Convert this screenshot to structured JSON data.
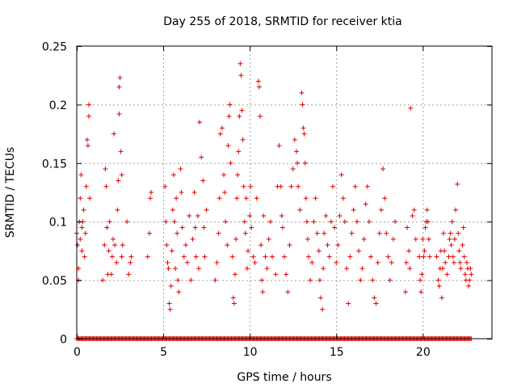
{
  "chart_data": {
    "type": "scatter",
    "title": "Day 255 of 2018, SRMTID for receiver ktia",
    "xlabel": "GPS time / hours",
    "ylabel": "SRMTID / TECUs",
    "xlim": [
      0,
      24
    ],
    "ylim": [
      0,
      0.25
    ],
    "x_ticks": [
      0,
      5,
      10,
      15,
      20
    ],
    "x_tick_labels": [
      "0",
      "5",
      "10",
      "15",
      "20"
    ],
    "y_ticks": [
      0,
      0.05,
      0.1,
      0.15,
      0.2,
      0.25
    ],
    "y_tick_labels": [
      "0",
      "0.05",
      "0.1",
      "0.15",
      "0.2",
      "0.25"
    ],
    "grid": true,
    "marker": "plus",
    "series": [
      {
        "name": "SRMTID",
        "color": "#e00000",
        "points": [
          [
            0.0,
            0.09
          ],
          [
            0.05,
            0.08
          ],
          [
            0.1,
            0.06
          ],
          [
            0.1,
            0.05
          ],
          [
            0.15,
            0.1
          ],
          [
            0.2,
            0.085
          ],
          [
            0.2,
            0.12
          ],
          [
            0.25,
            0.14
          ],
          [
            0.3,
            0.095
          ],
          [
            0.3,
            0.075
          ],
          [
            0.35,
            0.1
          ],
          [
            0.4,
            0.11
          ],
          [
            0.45,
            0.07
          ],
          [
            0.5,
            0.09
          ],
          [
            0.55,
            0.13
          ],
          [
            0.6,
            0.17
          ],
          [
            0.65,
            0.165
          ],
          [
            0.7,
            0.2
          ],
          [
            0.7,
            0.19
          ],
          [
            0.75,
            0.12
          ],
          [
            1.5,
            0.05
          ],
          [
            1.6,
            0.08
          ],
          [
            1.65,
            0.145
          ],
          [
            1.7,
            0.13
          ],
          [
            1.75,
            0.095
          ],
          [
            1.8,
            0.055
          ],
          [
            1.85,
            0.075
          ],
          [
            1.9,
            0.1
          ],
          [
            2.0,
            0.055
          ],
          [
            2.05,
            0.07
          ],
          [
            2.1,
            0.085
          ],
          [
            2.15,
            0.175
          ],
          [
            2.2,
            0.08
          ],
          [
            2.3,
            0.065
          ],
          [
            2.35,
            0.11
          ],
          [
            2.4,
            0.135
          ],
          [
            2.45,
            0.192
          ],
          [
            2.45,
            0.215
          ],
          [
            2.5,
            0.223
          ],
          [
            2.55,
            0.16
          ],
          [
            2.6,
            0.14
          ],
          [
            2.6,
            0.07
          ],
          [
            2.65,
            0.08
          ],
          [
            2.9,
            0.1
          ],
          [
            3.0,
            0.055
          ],
          [
            3.1,
            0.065
          ],
          [
            3.15,
            0.07
          ],
          [
            4.1,
            0.07
          ],
          [
            4.2,
            0.09
          ],
          [
            4.25,
            0.12
          ],
          [
            4.3,
            0.125
          ],
          [
            5.1,
            0.13
          ],
          [
            5.15,
            0.1
          ],
          [
            5.2,
            0.08
          ],
          [
            5.25,
            0.065
          ],
          [
            5.3,
            0.06
          ],
          [
            5.35,
            0.03
          ],
          [
            5.4,
            0.025
          ],
          [
            5.45,
            0.045
          ],
          [
            5.5,
            0.075
          ],
          [
            5.55,
            0.11
          ],
          [
            5.6,
            0.14
          ],
          [
            5.65,
            0.1
          ],
          [
            5.7,
            0.06
          ],
          [
            5.75,
            0.12
          ],
          [
            5.8,
            0.09
          ],
          [
            5.85,
            0.05
          ],
          [
            5.9,
            0.04
          ],
          [
            6.0,
            0.145
          ],
          [
            6.05,
            0.125
          ],
          [
            6.1,
            0.095
          ],
          [
            6.2,
            0.07
          ],
          [
            6.3,
            0.08
          ],
          [
            6.4,
            0.065
          ],
          [
            6.5,
            0.105
          ],
          [
            6.6,
            0.05
          ],
          [
            6.7,
            0.085
          ],
          [
            6.8,
            0.125
          ],
          [
            6.85,
            0.095
          ],
          [
            6.9,
            0.07
          ],
          [
            7.0,
            0.105
          ],
          [
            7.05,
            0.06
          ],
          [
            7.1,
            0.185
          ],
          [
            7.2,
            0.155
          ],
          [
            7.3,
            0.135
          ],
          [
            7.35,
            0.095
          ],
          [
            7.4,
            0.07
          ],
          [
            7.5,
            0.11
          ],
          [
            8.0,
            0.05
          ],
          [
            8.1,
            0.065
          ],
          [
            8.2,
            0.09
          ],
          [
            8.25,
            0.12
          ],
          [
            8.3,
            0.175
          ],
          [
            8.4,
            0.18
          ],
          [
            8.5,
            0.14
          ],
          [
            8.55,
            0.125
          ],
          [
            8.6,
            0.1
          ],
          [
            8.7,
            0.08
          ],
          [
            8.75,
            0.165
          ],
          [
            8.8,
            0.19
          ],
          [
            8.85,
            0.2
          ],
          [
            8.9,
            0.15
          ],
          [
            9.0,
            0.07
          ],
          [
            9.05,
            0.035
          ],
          [
            9.1,
            0.03
          ],
          [
            9.15,
            0.055
          ],
          [
            9.2,
            0.085
          ],
          [
            9.25,
            0.12
          ],
          [
            9.3,
            0.14
          ],
          [
            9.35,
            0.16
          ],
          [
            9.4,
            0.19
          ],
          [
            9.45,
            0.235
          ],
          [
            9.5,
            0.225
          ],
          [
            9.55,
            0.195
          ],
          [
            9.6,
            0.17
          ],
          [
            9.65,
            0.13
          ],
          [
            9.7,
            0.1
          ],
          [
            9.75,
            0.09
          ],
          [
            9.8,
            0.12
          ],
          [
            9.85,
            0.06
          ],
          [
            9.9,
            0.075
          ],
          [
            10.0,
            0.105
          ],
          [
            10.05,
            0.13
          ],
          [
            10.1,
            0.095
          ],
          [
            10.2,
            0.07
          ],
          [
            10.3,
            0.065
          ],
          [
            10.4,
            0.12
          ],
          [
            10.5,
            0.22
          ],
          [
            10.55,
            0.215
          ],
          [
            10.6,
            0.19
          ],
          [
            10.65,
            0.08
          ],
          [
            10.7,
            0.05
          ],
          [
            10.75,
            0.04
          ],
          [
            10.8,
            0.105
          ],
          [
            10.9,
            0.07
          ],
          [
            11.0,
            0.06
          ],
          [
            11.1,
            0.085
          ],
          [
            11.2,
            0.1
          ],
          [
            11.3,
            0.07
          ],
          [
            11.5,
            0.055
          ],
          [
            11.6,
            0.13
          ],
          [
            11.7,
            0.165
          ],
          [
            11.8,
            0.13
          ],
          [
            11.85,
            0.105
          ],
          [
            11.9,
            0.095
          ],
          [
            12.0,
            0.07
          ],
          [
            12.1,
            0.055
          ],
          [
            12.2,
            0.04
          ],
          [
            12.3,
            0.08
          ],
          [
            12.4,
            0.13
          ],
          [
            12.5,
            0.145
          ],
          [
            12.6,
            0.17
          ],
          [
            12.7,
            0.16
          ],
          [
            12.75,
            0.15
          ],
          [
            12.8,
            0.13
          ],
          [
            12.9,
            0.11
          ],
          [
            13.0,
            0.21
          ],
          [
            13.05,
            0.2
          ],
          [
            13.1,
            0.18
          ],
          [
            13.15,
            0.175
          ],
          [
            13.2,
            0.15
          ],
          [
            13.25,
            0.12
          ],
          [
            13.3,
            0.1
          ],
          [
            13.35,
            0.085
          ],
          [
            13.4,
            0.07
          ],
          [
            13.5,
            0.05
          ],
          [
            13.6,
            0.065
          ],
          [
            13.7,
            0.1
          ],
          [
            13.8,
            0.12
          ],
          [
            13.9,
            0.09
          ],
          [
            14.0,
            0.075
          ],
          [
            14.05,
            0.05
          ],
          [
            14.1,
            0.035
          ],
          [
            14.2,
            0.025
          ],
          [
            14.25,
            0.06
          ],
          [
            14.3,
            0.09
          ],
          [
            14.4,
            0.105
          ],
          [
            14.5,
            0.08
          ],
          [
            14.6,
            0.07
          ],
          [
            14.7,
            0.1
          ],
          [
            14.8,
            0.13
          ],
          [
            14.9,
            0.095
          ],
          [
            15.0,
            0.065
          ],
          [
            15.1,
            0.08
          ],
          [
            15.2,
            0.105
          ],
          [
            15.3,
            0.14
          ],
          [
            15.4,
            0.12
          ],
          [
            15.5,
            0.1
          ],
          [
            15.6,
            0.06
          ],
          [
            15.7,
            0.03
          ],
          [
            15.8,
            0.07
          ],
          [
            15.9,
            0.09
          ],
          [
            16.0,
            0.11
          ],
          [
            16.1,
            0.13
          ],
          [
            16.2,
            0.1
          ],
          [
            16.3,
            0.075
          ],
          [
            16.4,
            0.05
          ],
          [
            16.5,
            0.06
          ],
          [
            16.6,
            0.085
          ],
          [
            16.7,
            0.115
          ],
          [
            16.8,
            0.13
          ],
          [
            16.9,
            0.1
          ],
          [
            17.0,
            0.07
          ],
          [
            17.1,
            0.05
          ],
          [
            17.2,
            0.035
          ],
          [
            17.3,
            0.03
          ],
          [
            17.4,
            0.065
          ],
          [
            17.5,
            0.09
          ],
          [
            17.6,
            0.11
          ],
          [
            17.7,
            0.145
          ],
          [
            17.8,
            0.12
          ],
          [
            17.9,
            0.09
          ],
          [
            18.0,
            0.07
          ],
          [
            18.1,
            0.05
          ],
          [
            18.2,
            0.065
          ],
          [
            18.3,
            0.085
          ],
          [
            18.4,
            0.1
          ],
          [
            19.0,
            0.04
          ],
          [
            19.05,
            0.065
          ],
          [
            19.1,
            0.095
          ],
          [
            19.2,
            0.075
          ],
          [
            19.25,
            0.06
          ],
          [
            19.3,
            0.197
          ],
          [
            19.4,
            0.105
          ],
          [
            19.5,
            0.11
          ],
          [
            19.6,
            0.085
          ],
          [
            19.8,
            0.07
          ],
          [
            19.85,
            0.05
          ],
          [
            19.9,
            0.04
          ],
          [
            19.95,
            0.055
          ],
          [
            20.0,
            0.085
          ],
          [
            20.05,
            0.07
          ],
          [
            20.1,
            0.075
          ],
          [
            20.15,
            0.095
          ],
          [
            20.2,
            0.1
          ],
          [
            20.25,
            0.11
          ],
          [
            20.3,
            0.1
          ],
          [
            20.35,
            0.085
          ],
          [
            20.4,
            0.07
          ],
          [
            20.8,
            0.07
          ],
          [
            20.9,
            0.05
          ],
          [
            20.95,
            0.045
          ],
          [
            21.0,
            0.06
          ],
          [
            21.05,
            0.075
          ],
          [
            21.1,
            0.035
          ],
          [
            21.15,
            0.06
          ],
          [
            21.2,
            0.09
          ],
          [
            21.25,
            0.075
          ],
          [
            21.3,
            0.065
          ],
          [
            21.4,
            0.055
          ],
          [
            21.5,
            0.07
          ],
          [
            21.55,
            0.085
          ],
          [
            21.6,
            0.09
          ],
          [
            21.65,
            0.08
          ],
          [
            21.7,
            0.1
          ],
          [
            21.75,
            0.07
          ],
          [
            21.8,
            0.065
          ],
          [
            21.85,
            0.085
          ],
          [
            21.9,
            0.11
          ],
          [
            22.0,
            0.132
          ],
          [
            22.05,
            0.09
          ],
          [
            22.1,
            0.075
          ],
          [
            22.15,
            0.065
          ],
          [
            22.2,
            0.06
          ],
          [
            22.3,
            0.08
          ],
          [
            22.35,
            0.095
          ],
          [
            22.4,
            0.07
          ],
          [
            22.45,
            0.055
          ],
          [
            22.5,
            0.05
          ],
          [
            22.55,
            0.065
          ],
          [
            22.6,
            0.06
          ],
          [
            22.65,
            0.045
          ],
          [
            22.7,
            0.05
          ],
          [
            22.75,
            0.06
          ],
          [
            22.8,
            0.055
          ]
        ],
        "zero_ranges": [
          [
            0.0,
            22.8
          ]
        ]
      }
    ]
  }
}
